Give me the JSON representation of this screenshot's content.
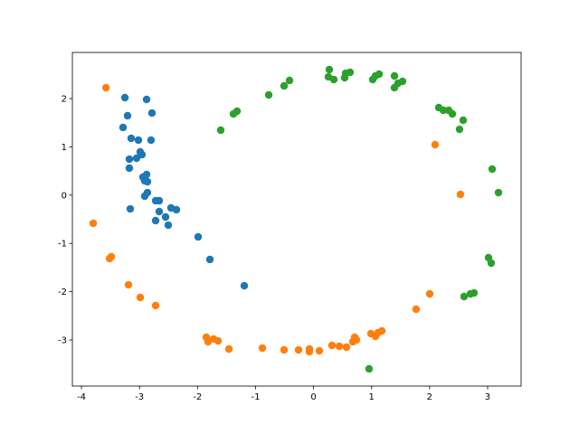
{
  "chart_data": {
    "type": "scatter",
    "xlim": [
      -4.157,
      3.577
    ],
    "ylim": [
      -3.955,
      2.955
    ],
    "xticks": [
      -4,
      -3,
      -2,
      -1,
      0,
      1,
      2,
      3
    ],
    "yticks": [
      -3,
      -2,
      -1,
      0,
      1,
      2
    ],
    "series": [
      {
        "color": "#1f77b4",
        "x": [
          -3.252,
          -2.878,
          -3.206,
          -2.785,
          -3.284,
          -3.144,
          -3.019,
          -2.801,
          -3.175,
          -3.051,
          -2.957,
          -2.988,
          -3.175,
          -2.878,
          -2.941,
          -2.91,
          -2.863,
          -2.863,
          -2.91,
          -3.159,
          -2.722,
          -2.66,
          -2.66,
          -2.551,
          -2.457,
          -2.364,
          -2.722,
          -2.504,
          -1.989,
          -1.787,
          -1.194
        ],
        "y": [
          2.019,
          1.981,
          1.644,
          1.7,
          1.401,
          1.176,
          1.139,
          1.139,
          0.745,
          0.764,
          0.839,
          0.895,
          0.558,
          0.427,
          0.371,
          0.296,
          0.277,
          0.052,
          -0.022,
          -0.285,
          -0.116,
          -0.116,
          -0.341,
          -0.453,
          -0.266,
          -0.303,
          -0.528,
          -0.622,
          -0.865,
          -1.333,
          -1.877
        ]
      },
      {
        "color": "#ff7f0e",
        "x": [
          -3.578,
          -3.797,
          -3.485,
          -3.516,
          -3.19,
          -2.987,
          -2.722,
          -1.849,
          -1.818,
          -1.724,
          -1.646,
          -1.459,
          -0.882,
          -0.508,
          -0.259,
          -0.072,
          -0.072,
          0.1,
          0.318,
          0.443,
          0.567,
          0.677,
          0.708,
          0.739,
          0.988,
          1.066,
          1.113,
          1.176,
          1.768,
          2.002,
          2.095,
          2.532
        ],
        "y": [
          2.225,
          -0.584,
          -1.277,
          -1.315,
          -1.858,
          -2.12,
          -2.288,
          -2.944,
          -3.037,
          -2.981,
          -3.019,
          -3.187,
          -3.169,
          -3.206,
          -3.206,
          -3.187,
          -3.243,
          -3.225,
          -3.112,
          -3.131,
          -3.15,
          -3.037,
          -2.944,
          -3.0,
          -2.869,
          -2.925,
          -2.85,
          -2.813,
          -2.363,
          -2.045,
          1.045,
          0.015
        ]
      },
      {
        "color": "#2ca02c",
        "x": [
          -1.6,
          -1.381,
          -1.319,
          -0.773,
          -0.508,
          -0.415,
          0.271,
          0.256,
          0.349,
          0.536,
          0.552,
          0.63,
          1.02,
          1.066,
          1.129,
          1.394,
          1.534,
          1.394,
          1.456,
          2.158,
          2.236,
          2.329,
          2.392,
          2.516,
          2.579,
          3.078,
          3.187,
          3.015,
          3.062,
          2.594,
          2.704,
          2.766,
          0.957
        ],
        "y": [
          1.345,
          1.682,
          1.738,
          2.075,
          2.262,
          2.375,
          2.599,
          2.449,
          2.393,
          2.431,
          2.524,
          2.543,
          2.393,
          2.468,
          2.506,
          2.468,
          2.356,
          2.225,
          2.318,
          1.813,
          1.757,
          1.757,
          1.682,
          1.363,
          1.551,
          0.539,
          0.052,
          -1.296,
          -1.408,
          -2.101,
          -2.045,
          -2.026,
          -3.599
        ]
      }
    ]
  }
}
